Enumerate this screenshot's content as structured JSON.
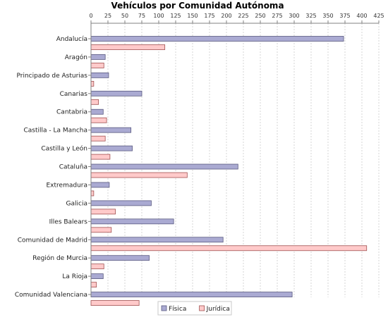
{
  "chart_data": {
    "type": "bar",
    "orientation": "horizontal",
    "title": "Vehículos por Comunidad Autónoma",
    "xlabel": "",
    "ylabel": "",
    "xlim": [
      0,
      425
    ],
    "x_ticks": [
      0,
      25,
      50,
      75,
      100,
      125,
      150,
      175,
      200,
      225,
      250,
      275,
      300,
      325,
      350,
      375,
      400,
      425
    ],
    "x_axis_position": "top",
    "grid": true,
    "legend_position": "bottom-center",
    "categories": [
      "Andalucía",
      "Aragón",
      "Principado de Asturias",
      "Canarias",
      "Cantabria",
      "Castilla - La Mancha",
      "Castilla y León",
      "Cataluña",
      "Extremadura",
      "Galicia",
      "Illes Balears",
      "Comunidad de Madrid",
      "Región de Murcia",
      "La Rioja",
      "Comunidad Valenciana"
    ],
    "series": [
      {
        "name": "Física",
        "color": "#aaaad2",
        "stroke": "#5a5a80",
        "values": [
          373,
          21,
          26,
          75,
          18,
          59,
          61,
          217,
          27,
          89,
          122,
          195,
          86,
          18,
          297
        ]
      },
      {
        "name": "Jurídica",
        "color": "#ffcaca",
        "stroke": "#a05050",
        "values": [
          109,
          19,
          4,
          11,
          23,
          21,
          28,
          142,
          4,
          36,
          30,
          407,
          19,
          8,
          71
        ]
      }
    ]
  }
}
